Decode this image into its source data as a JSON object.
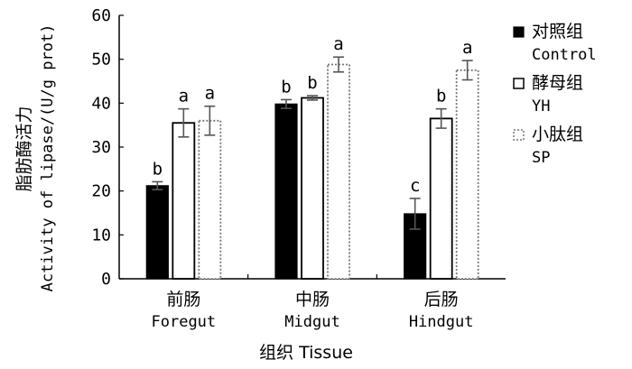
{
  "chart_data": {
    "type": "bar",
    "ylabel_cn": "脂肪酶活力",
    "ylabel_en": "Activity of lipase/(U/g prot)",
    "xlabel": "组织 Tissue",
    "ylim": [
      0,
      60
    ],
    "yticks": [
      0,
      10,
      20,
      30,
      40,
      50,
      60
    ],
    "categories": [
      {
        "cn": "前肠",
        "en": "Foregut"
      },
      {
        "cn": "中肠",
        "en": "Midgut"
      },
      {
        "cn": "后肠",
        "en": "Hindgut"
      }
    ],
    "series": [
      {
        "name_cn": "对照组",
        "name_en": "Control",
        "style": "solid",
        "values": [
          21.2,
          39.8,
          14.8
        ],
        "errors": [
          0.9,
          1.0,
          3.5
        ],
        "letters": [
          "b",
          "b",
          "c"
        ]
      },
      {
        "name_cn": "酵母组",
        "name_en": "YH",
        "style": "hollow",
        "values": [
          35.5,
          41.2,
          36.5
        ],
        "errors": [
          3.2,
          0.5,
          2.2
        ],
        "letters": [
          "a",
          "b",
          "b"
        ]
      },
      {
        "name_cn": "小肽组",
        "name_en": "SP",
        "style": "dotted",
        "values": [
          36.0,
          48.8,
          47.5
        ],
        "errors": [
          3.3,
          1.7,
          2.2
        ],
        "letters": [
          "a",
          "a",
          "a"
        ]
      }
    ],
    "legend_position": "right"
  }
}
